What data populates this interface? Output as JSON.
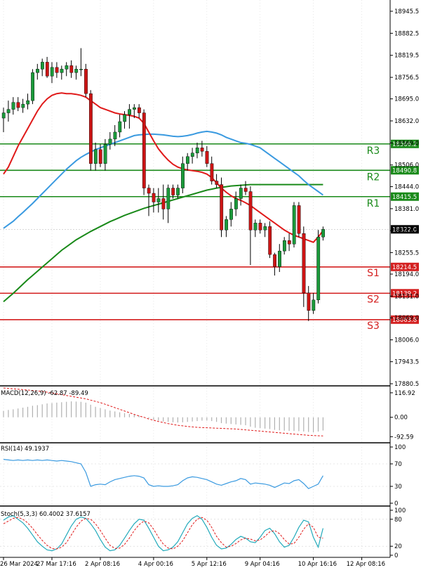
{
  "chart_data": [
    {
      "type": "candlestick",
      "panel": "price",
      "y_ticks": [
        "18945.5",
        "18882.5",
        "18819.5",
        "18756.5",
        "18695.0",
        "18632.0",
        "18569.0",
        "18506.0",
        "18444.0",
        "18381.0",
        "18318.5",
        "18255.5",
        "18194.0",
        "18131.0",
        "18069.0",
        "18006.0",
        "17943.5",
        "17880.5"
      ],
      "ylim": [
        17880.5,
        18945.5
      ],
      "x_tick_labels": [
        "26 Mar 2024",
        "27 Mar 17:16",
        "2 Apr 08:16",
        "4 Apr 00:16",
        "5 Apr 12:16",
        "9 Apr 04:16",
        "10 Apr 16:16",
        "12 Apr 08:16"
      ],
      "x_tick_index": [
        0,
        10,
        20,
        31,
        42,
        53,
        64,
        74
      ],
      "candles": [
        {
          "o": 18640,
          "h": 18670,
          "l": 18600,
          "c": 18655
        },
        {
          "o": 18655,
          "h": 18690,
          "l": 18630,
          "c": 18665
        },
        {
          "o": 18665,
          "h": 18700,
          "l": 18650,
          "c": 18685
        },
        {
          "o": 18685,
          "h": 18700,
          "l": 18660,
          "c": 18670
        },
        {
          "o": 18670,
          "h": 18695,
          "l": 18655,
          "c": 18680
        },
        {
          "o": 18680,
          "h": 18710,
          "l": 18665,
          "c": 18690
        },
        {
          "o": 18690,
          "h": 18780,
          "l": 18680,
          "c": 18770
        },
        {
          "o": 18770,
          "h": 18795,
          "l": 18750,
          "c": 18780
        },
        {
          "o": 18780,
          "h": 18810,
          "l": 18760,
          "c": 18800
        },
        {
          "o": 18800,
          "h": 18815,
          "l": 18755,
          "c": 18760
        },
        {
          "o": 18760,
          "h": 18800,
          "l": 18740,
          "c": 18785
        },
        {
          "o": 18785,
          "h": 18800,
          "l": 18755,
          "c": 18770
        },
        {
          "o": 18770,
          "h": 18790,
          "l": 18750,
          "c": 18780
        },
        {
          "o": 18780,
          "h": 18800,
          "l": 18760,
          "c": 18790
        },
        {
          "o": 18790,
          "h": 18805,
          "l": 18755,
          "c": 18770
        },
        {
          "o": 18770,
          "h": 18790,
          "l": 18750,
          "c": 18780
        },
        {
          "o": 18780,
          "h": 18840,
          "l": 18760,
          "c": 18780
        },
        {
          "o": 18780,
          "h": 18795,
          "l": 18700,
          "c": 18710
        },
        {
          "o": 18710,
          "h": 18720,
          "l": 18490,
          "c": 18510
        },
        {
          "o": 18510,
          "h": 18570,
          "l": 18490,
          "c": 18550
        },
        {
          "o": 18550,
          "h": 18565,
          "l": 18500,
          "c": 18510
        },
        {
          "o": 18510,
          "h": 18580,
          "l": 18490,
          "c": 18565
        },
        {
          "o": 18565,
          "h": 18600,
          "l": 18550,
          "c": 18580
        },
        {
          "o": 18580,
          "h": 18620,
          "l": 18560,
          "c": 18600
        },
        {
          "o": 18600,
          "h": 18650,
          "l": 18585,
          "c": 18630
        },
        {
          "o": 18630,
          "h": 18660,
          "l": 18610,
          "c": 18650
        },
        {
          "o": 18650,
          "h": 18680,
          "l": 18610,
          "c": 18665
        },
        {
          "o": 18665,
          "h": 18680,
          "l": 18640,
          "c": 18670
        },
        {
          "o": 18670,
          "h": 18680,
          "l": 18640,
          "c": 18655
        },
        {
          "o": 18655,
          "h": 18665,
          "l": 18420,
          "c": 18440
        },
        {
          "o": 18440,
          "h": 18450,
          "l": 18360,
          "c": 18425
        },
        {
          "o": 18425,
          "h": 18440,
          "l": 18370,
          "c": 18400
        },
        {
          "o": 18400,
          "h": 18440,
          "l": 18370,
          "c": 18410
        },
        {
          "o": 18410,
          "h": 18450,
          "l": 18350,
          "c": 18380
        },
        {
          "o": 18380,
          "h": 18450,
          "l": 18340,
          "c": 18440
        },
        {
          "o": 18440,
          "h": 18450,
          "l": 18410,
          "c": 18420
        },
        {
          "o": 18420,
          "h": 18450,
          "l": 18410,
          "c": 18440
        },
        {
          "o": 18440,
          "h": 18530,
          "l": 18425,
          "c": 18510
        },
        {
          "o": 18510,
          "h": 18540,
          "l": 18490,
          "c": 18530
        },
        {
          "o": 18530,
          "h": 18555,
          "l": 18510,
          "c": 18540
        },
        {
          "o": 18540,
          "h": 18570,
          "l": 18525,
          "c": 18555
        },
        {
          "o": 18555,
          "h": 18575,
          "l": 18530,
          "c": 18545
        },
        {
          "o": 18545,
          "h": 18560,
          "l": 18500,
          "c": 18510
        },
        {
          "o": 18510,
          "h": 18530,
          "l": 18450,
          "c": 18460
        },
        {
          "o": 18460,
          "h": 18480,
          "l": 18440,
          "c": 18450
        },
        {
          "o": 18450,
          "h": 18470,
          "l": 18300,
          "c": 18320
        },
        {
          "o": 18320,
          "h": 18360,
          "l": 18300,
          "c": 18350
        },
        {
          "o": 18350,
          "h": 18400,
          "l": 18330,
          "c": 18380
        },
        {
          "o": 18380,
          "h": 18430,
          "l": 18360,
          "c": 18410
        },
        {
          "o": 18410,
          "h": 18450,
          "l": 18390,
          "c": 18440
        },
        {
          "o": 18440,
          "h": 18460,
          "l": 18420,
          "c": 18430
        },
        {
          "o": 18430,
          "h": 18445,
          "l": 18220,
          "c": 18320
        },
        {
          "o": 18320,
          "h": 18350,
          "l": 18300,
          "c": 18340
        },
        {
          "o": 18340,
          "h": 18350,
          "l": 18310,
          "c": 18320
        },
        {
          "o": 18320,
          "h": 18340,
          "l": 18300,
          "c": 18330
        },
        {
          "o": 18330,
          "h": 18345,
          "l": 18240,
          "c": 18250
        },
        {
          "o": 18250,
          "h": 18255,
          "l": 18190,
          "c": 18215
        },
        {
          "o": 18215,
          "h": 18280,
          "l": 18200,
          "c": 18260
        },
        {
          "o": 18260,
          "h": 18300,
          "l": 18250,
          "c": 18290
        },
        {
          "o": 18290,
          "h": 18310,
          "l": 18260,
          "c": 18280
        },
        {
          "o": 18280,
          "h": 18400,
          "l": 18270,
          "c": 18390
        },
        {
          "o": 18390,
          "h": 18400,
          "l": 18300,
          "c": 18310
        },
        {
          "o": 18310,
          "h": 18330,
          "l": 18100,
          "c": 18140
        },
        {
          "o": 18140,
          "h": 18160,
          "l": 18060,
          "c": 18090
        },
        {
          "o": 18090,
          "h": 18140,
          "l": 18080,
          "c": 18120
        },
        {
          "o": 18120,
          "h": 18320,
          "l": 18110,
          "c": 18300
        },
        {
          "o": 18300,
          "h": 18330,
          "l": 18290,
          "c": 18322
        }
      ],
      "ma_red": [
        18480,
        18500,
        18530,
        18560,
        18585,
        18610,
        18635,
        18660,
        18680,
        18695,
        18705,
        18710,
        18712,
        18710,
        18710,
        18708,
        18705,
        18700,
        18690,
        18680,
        18670,
        18665,
        18660,
        18655,
        18652,
        18650,
        18648,
        18645,
        18640,
        18625,
        18600,
        18575,
        18552,
        18535,
        18520,
        18508,
        18500,
        18495,
        18492,
        18490,
        18488,
        18485,
        18480,
        18470,
        18455,
        18440,
        18428,
        18418,
        18410,
        18405,
        18398,
        18390,
        18380,
        18370,
        18360,
        18350,
        18340,
        18330,
        18320,
        18312,
        18305,
        18300,
        18295,
        18290,
        18285,
        18300,
        18318
      ],
      "ma_blue": [
        18325,
        18335,
        18345,
        18358,
        18370,
        18383,
        18396,
        18410,
        18424,
        18438,
        18452,
        18466,
        18480,
        18494,
        18506,
        18518,
        18528,
        18536,
        18543,
        18550,
        18555,
        18560,
        18565,
        18570,
        18575,
        18580,
        18585,
        18590,
        18592,
        18593,
        18594,
        18594,
        18593,
        18592,
        18590,
        18588,
        18587,
        18588,
        18590,
        18593,
        18597,
        18600,
        18602,
        18600,
        18597,
        18592,
        18585,
        18580,
        18575,
        18570,
        18568,
        18565,
        18560,
        18555,
        18545,
        18535,
        18525,
        18515,
        18505,
        18495,
        18485,
        18475,
        18462,
        18450,
        18440,
        18430,
        18420
      ],
      "ma_green": [
        18115,
        18127,
        18139,
        18152,
        18165,
        18178,
        18190,
        18202,
        18214,
        18226,
        18238,
        18250,
        18262,
        18272,
        18282,
        18292,
        18300,
        18308,
        18316,
        18323,
        18330,
        18337,
        18344,
        18350,
        18356,
        18362,
        18367,
        18372,
        18377,
        18382,
        18386,
        18390,
        18394,
        18398,
        18402,
        18406,
        18410,
        18414,
        18418,
        18422,
        18426,
        18430,
        18434,
        18437,
        18440,
        18442,
        18444,
        18446,
        18447,
        18448,
        18449,
        18450,
        18450,
        18450,
        18450,
        18450,
        18450,
        18450,
        18450,
        18450,
        18450,
        18450,
        18450,
        18450,
        18450,
        18450,
        18450
      ],
      "levels": [
        {
          "name": "R3",
          "value": 18566.2,
          "label": "18566.2",
          "color": "#1a8a1a"
        },
        {
          "name": "R2",
          "value": 18490.8,
          "label": "18490.8",
          "color": "#1a8a1a"
        },
        {
          "name": "R1",
          "value": 18415.5,
          "label": "18415.5",
          "color": "#1a8a1a"
        },
        {
          "name": "S1",
          "value": 18214.5,
          "label": "18214.5",
          "color": "#d42020"
        },
        {
          "name": "S2",
          "value": 18139.2,
          "label": "18139.2",
          "color": "#d42020"
        },
        {
          "name": "S3",
          "value": 18063.8,
          "label": "18063.8",
          "color": "#d42020"
        }
      ],
      "current_price": {
        "value": 18322.0,
        "label": "18322.0"
      }
    },
    {
      "type": "histogram+line",
      "panel": "macd",
      "title": "MACD(12,26,9) -62.87 -89.49",
      "y_ticks": [
        "116.92",
        "0.00",
        "-92.59"
      ],
      "ylim": [
        -115,
        140
      ],
      "histogram": [
        30,
        35,
        38,
        42,
        46,
        50,
        55,
        58,
        62,
        66,
        68,
        70,
        72,
        74,
        76,
        75,
        74,
        70,
        60,
        50,
        44,
        38,
        32,
        28,
        24,
        20,
        16,
        12,
        8,
        2,
        -5,
        -12,
        -16,
        -20,
        -22,
        -24,
        -25,
        -24,
        -22,
        -20,
        -18,
        -16,
        -16,
        -18,
        -22,
        -28,
        -30,
        -32,
        -34,
        -36,
        -38,
        -45,
        -50,
        -52,
        -54,
        -56,
        -60,
        -62,
        -64,
        -65,
        -65,
        -66,
        -68,
        -70,
        -72,
        -68,
        -63
      ],
      "signal": [
        140,
        138,
        136,
        134,
        132,
        130,
        128,
        126,
        124,
        120,
        116,
        112,
        108,
        104,
        100,
        96,
        92,
        88,
        82,
        76,
        70,
        62,
        54,
        46,
        38,
        30,
        22,
        14,
        6,
        0,
        -8,
        -14,
        -20,
        -25,
        -30,
        -34,
        -38,
        -41,
        -44,
        -46,
        -48,
        -49,
        -50,
        -51,
        -52,
        -53,
        -54,
        -55,
        -56,
        -58,
        -60,
        -62,
        -64,
        -66,
        -68,
        -70,
        -72,
        -74,
        -76,
        -78,
        -80,
        -82,
        -84,
        -86,
        -87,
        -88,
        -89
      ]
    },
    {
      "type": "line",
      "panel": "rsi",
      "title": "RSI(14) 49.1937",
      "y_ticks": [
        "100",
        "70",
        "30",
        "0"
      ],
      "ylim": [
        0,
        100
      ],
      "values": [
        78,
        77,
        76,
        77,
        76,
        77,
        76,
        77,
        76,
        77,
        76,
        75,
        76,
        75,
        74,
        72,
        70,
        55,
        30,
        33,
        34,
        33,
        38,
        42,
        44,
        46,
        48,
        49,
        48,
        45,
        33,
        30,
        31,
        30,
        30,
        31,
        33,
        40,
        45,
        47,
        46,
        44,
        42,
        38,
        34,
        32,
        35,
        38,
        40,
        44,
        42,
        34,
        36,
        35,
        34,
        32,
        28,
        32,
        36,
        35,
        40,
        42,
        35,
        26,
        30,
        34,
        49
      ]
    },
    {
      "type": "line",
      "panel": "stochastic",
      "title": "Stoch(5,3,3) 60.4002 37.6157",
      "y_ticks": [
        "100",
        "80",
        "20",
        "0"
      ],
      "ylim": [
        0,
        100
      ],
      "k": [
        78,
        85,
        88,
        80,
        72,
        60,
        45,
        30,
        20,
        12,
        10,
        14,
        25,
        45,
        65,
        80,
        85,
        82,
        70,
        55,
        35,
        18,
        10,
        12,
        22,
        38,
        55,
        70,
        80,
        78,
        60,
        40,
        20,
        10,
        12,
        18,
        30,
        50,
        70,
        82,
        88,
        80,
        62,
        40,
        22,
        14,
        16,
        24,
        35,
        42,
        38,
        30,
        28,
        40,
        55,
        60,
        48,
        30,
        18,
        22,
        40,
        62,
        78,
        74,
        40,
        18,
        60
      ],
      "d": [
        70,
        76,
        82,
        84,
        80,
        72,
        60,
        46,
        33,
        22,
        15,
        14,
        18,
        28,
        45,
        62,
        76,
        82,
        80,
        70,
        55,
        38,
        22,
        15,
        16,
        24,
        38,
        55,
        68,
        76,
        72,
        58,
        40,
        25,
        16,
        14,
        20,
        32,
        50,
        68,
        80,
        84,
        78,
        62,
        42,
        28,
        18,
        20,
        26,
        34,
        38,
        36,
        32,
        34,
        42,
        52,
        55,
        48,
        35,
        25,
        26,
        40,
        58,
        70,
        62,
        40,
        38
      ]
    }
  ]
}
